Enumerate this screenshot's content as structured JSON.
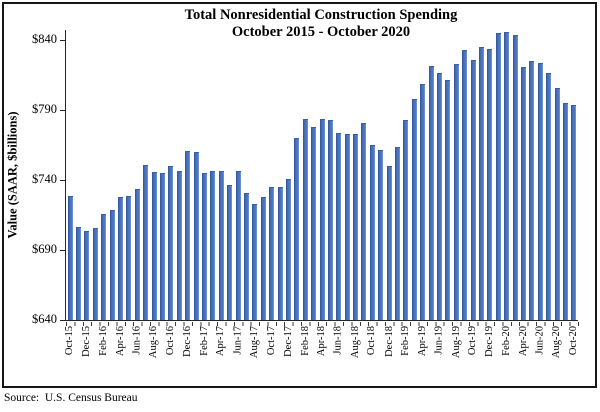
{
  "figure": {
    "title_line1": "Total Nonresidential Construction Spending",
    "title_line2": "October 2015 - October 2020",
    "source": "Source:  U.S. Census Bureau"
  },
  "chart_data": {
    "type": "bar",
    "title": "Total Nonresidential Construction Spending",
    "subtitle": "October 2015 - October 2020",
    "xlabel": "",
    "ylabel": "Value (SAAR, $billions)",
    "ylim": [
      640,
      848
    ],
    "yticks": [
      640,
      690,
      740,
      790,
      840
    ],
    "ytick_labels": [
      "$640",
      "$690",
      "$740",
      "$790",
      "$840"
    ],
    "xtick_label_interval": 2,
    "grid": false,
    "legend_position": "none",
    "bar_color": "#4a74be",
    "bar_edge_color": "#2e5096",
    "categories": [
      "Oct-15",
      "Nov-15",
      "Dec-15",
      "Jan-16",
      "Feb-16",
      "Mar-16",
      "Apr-16",
      "May-16",
      "Jun-16",
      "Jul-16",
      "Aug-16",
      "Sep-16",
      "Oct-16",
      "Nov-16",
      "Dec-16",
      "Jan-17",
      "Feb-17",
      "Mar-17",
      "Apr-17",
      "May-17",
      "Jun-17",
      "Jul-17",
      "Aug-17",
      "Sep-17",
      "Oct-17",
      "Nov-17",
      "Dec-17",
      "Jan-18",
      "Feb-18",
      "Mar-18",
      "Apr-18",
      "May-18",
      "Jun-18",
      "Jul-18",
      "Aug-18",
      "Sep-18",
      "Oct-18",
      "Nov-18",
      "Dec-18",
      "Jan-19",
      "Feb-19",
      "Mar-19",
      "Apr-19",
      "May-19",
      "Jun-19",
      "Jul-19",
      "Aug-19",
      "Sep-19",
      "Oct-19",
      "Nov-19",
      "Dec-19",
      "Jan-20",
      "Feb-20",
      "Mar-20",
      "Apr-20",
      "May-20",
      "Jun-20",
      "Jul-20",
      "Aug-20",
      "Sep-20",
      "Oct-20"
    ],
    "values": [
      728,
      706,
      703,
      705,
      715,
      718,
      727,
      728,
      733,
      750,
      745,
      744,
      749,
      746,
      760,
      759,
      744,
      746,
      746,
      736,
      746,
      730,
      722,
      727,
      734,
      734,
      740,
      769,
      783,
      777,
      783,
      782,
      773,
      772,
      772,
      780,
      764,
      761,
      749,
      763,
      782,
      797,
      808,
      821,
      816,
      811,
      822,
      832,
      825,
      834,
      833,
      844,
      845,
      843,
      820,
      824,
      823,
      816,
      805,
      794,
      793
    ],
    "shown_xtick_labels": [
      "Oct-15",
      "Dec-15",
      "Feb-16",
      "Apr-16",
      "Jun-16",
      "Aug-16",
      "Oct-16",
      "Dec-16",
      "Feb-17",
      "Apr-17",
      "Jun-17",
      "Aug-17",
      "Oct-17",
      "Dec-17",
      "Feb-18",
      "Apr-18",
      "Jun-18",
      "Aug-18",
      "Oct-18",
      "Dec-18",
      "Feb-19",
      "Apr-19",
      "Jun-19",
      "Aug-19",
      "Oct-19",
      "Dec-19",
      "Feb-20",
      "Apr-20",
      "Jun-20",
      "Aug-20",
      "Oct-20"
    ],
    "source": "Source:  U.S. Census Bureau"
  }
}
